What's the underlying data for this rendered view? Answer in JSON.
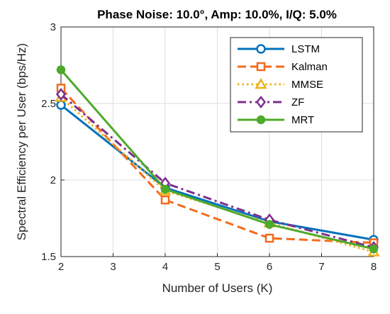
{
  "chart_data": {
    "type": "line",
    "title": "Phase Noise: 10.0°, Amp: 10.0%, I/Q: 5.0%",
    "xlabel": "Number of Users (K)",
    "ylabel": "Spectral Efficiency per User (bps/Hz)",
    "xlim": [
      2,
      8
    ],
    "ylim": [
      1.5,
      3
    ],
    "xticks": [
      2,
      3,
      4,
      5,
      6,
      7,
      8
    ],
    "yticks": [
      1.5,
      2,
      2.5,
      3
    ],
    "xtick_labels": [
      "2",
      "3",
      "4",
      "5",
      "6",
      "7",
      "8"
    ],
    "ytick_labels": [
      "1.5",
      "2",
      "2.5",
      "3"
    ],
    "grid": true,
    "legend_position": "top-right",
    "x": [
      2,
      4,
      6,
      8
    ],
    "series": [
      {
        "name": "LSTM",
        "values": [
          2.49,
          1.95,
          1.73,
          1.61
        ],
        "color": "#0072BD",
        "dash": "solid",
        "marker": "circle"
      },
      {
        "name": "Kalman",
        "values": [
          2.6,
          1.87,
          1.62,
          1.59
        ],
        "color": "#F26B1D",
        "dash": "dashed",
        "marker": "square"
      },
      {
        "name": "MMSE",
        "values": [
          2.54,
          1.93,
          1.72,
          1.53
        ],
        "color": "#EDB120",
        "dash": "dotted",
        "marker": "triangle"
      },
      {
        "name": "ZF",
        "values": [
          2.56,
          1.98,
          1.74,
          1.56
        ],
        "color": "#7E2F8E",
        "dash": "dashdot",
        "marker": "diamond"
      },
      {
        "name": "MRT",
        "values": [
          2.72,
          1.94,
          1.71,
          1.55
        ],
        "color": "#4DAA2A",
        "dash": "solid",
        "marker": "filled-circle"
      }
    ]
  }
}
